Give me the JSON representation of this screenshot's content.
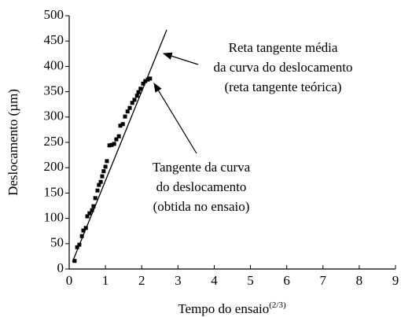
{
  "chart_data": {
    "type": "scatter",
    "xlabel": "Tempo do ensaio",
    "xlabel_superscript": "(2/3)",
    "ylabel": "Deslocamento (µm)",
    "xlim": [
      0,
      9
    ],
    "ylim": [
      0,
      500
    ],
    "xticks": [
      0,
      1,
      2,
      3,
      4,
      5,
      6,
      7,
      8,
      9
    ],
    "yticks": [
      0,
      50,
      100,
      150,
      200,
      250,
      300,
      350,
      400,
      450,
      500
    ],
    "color": "#000000",
    "series": [
      {
        "type": "scatter",
        "color": "#000000",
        "x": [
          0.15,
          0.22,
          0.28,
          0.35,
          0.39,
          0.46,
          0.5,
          0.56,
          0.63,
          0.67,
          0.72,
          0.78,
          0.82,
          0.87,
          0.91,
          0.95,
          1.0,
          1.04,
          1.11,
          1.17,
          1.24,
          1.3,
          1.37,
          1.41,
          1.48,
          1.54,
          1.61,
          1.67,
          1.74,
          1.8,
          1.87,
          1.91,
          1.97,
          2.04,
          2.1,
          2.17,
          2.23
        ],
        "values": [
          16,
          43,
          48,
          65,
          76,
          81,
          104,
          110,
          116,
          124,
          140,
          155,
          166,
          172,
          183,
          193,
          202,
          213,
          244,
          245,
          247,
          256,
          262,
          283,
          286,
          301,
          311,
          318,
          328,
          334,
          342,
          349,
          356,
          366,
          371,
          374,
          376
        ]
      },
      {
        "type": "line",
        "color": "#000000",
        "x": [
          0.09,
          2.69
        ],
        "values": [
          14,
          472
        ]
      }
    ],
    "annotations": [
      {
        "lines": [
          "Reta tangente média",
          "da curva do deslocamento",
          "(reta tangente teórica)"
        ]
      },
      {
        "lines": [
          "Tangente da curva",
          "do deslocamento",
          "(obtida no ensaio)"
        ]
      }
    ]
  }
}
